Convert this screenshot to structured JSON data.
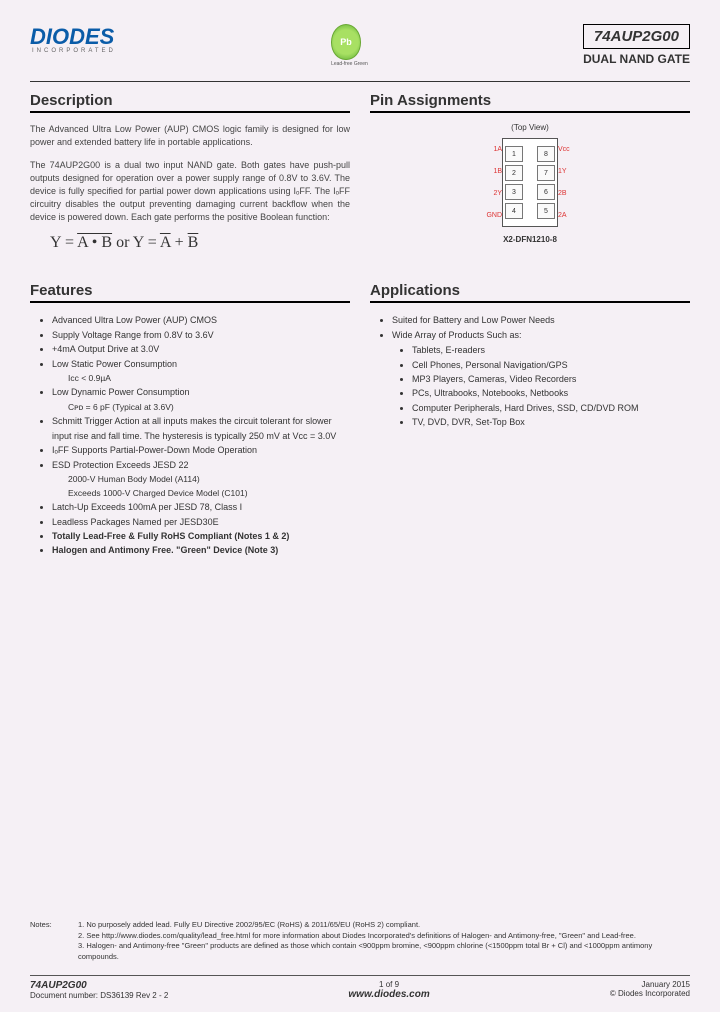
{
  "header": {
    "logo_text": "DIODES",
    "logo_sub": "INCORPORATED",
    "badge_text": "Pb",
    "badge_sub": "Lead-free Green",
    "part_number": "74AUP2G00",
    "part_subtitle": "DUAL NAND GATE"
  },
  "description": {
    "heading": "Description",
    "para1": "The Advanced Ultra Low Power (AUP) CMOS logic family is designed for low power and extended battery life in portable applications.",
    "para2": "The 74AUP2G00 is a dual two input NAND gate. Both gates have push-pull outputs designed for operation over a power supply range of 0.8V to 3.6V. The device is fully specified for partial power down applications using IₒFF. The IₒFF circuitry disables the output preventing damaging current backflow when the device is powered down. Each gate performs the positive Boolean function:",
    "formula_a": "Y = ",
    "formula_b": "A • B",
    "formula_or": " or ",
    "formula_c": "Y = ",
    "formula_d": "A",
    "formula_plus": " + ",
    "formula_e": "B"
  },
  "pins": {
    "heading": "Pin Assignments",
    "top_view": "(Top View)",
    "package": "X2-DFN1210-8",
    "rows": [
      {
        "l": "1A",
        "ln": "1",
        "rn": "8",
        "r": "Vcc"
      },
      {
        "l": "1B",
        "ln": "2",
        "rn": "7",
        "r": "1Y"
      },
      {
        "l": "2Y",
        "ln": "3",
        "rn": "6",
        "r": "2B"
      },
      {
        "l": "GND",
        "ln": "4",
        "rn": "5",
        "r": "2A"
      }
    ]
  },
  "features": {
    "heading": "Features",
    "items": [
      {
        "t": "Advanced Ultra Low Power (AUP) CMOS"
      },
      {
        "t": "Supply Voltage Range from 0.8V to 3.6V"
      },
      {
        "t": "+4mA Output Drive at 3.0V"
      },
      {
        "t": "Low Static Power Consumption",
        "sub": [
          "Icc < 0.9µA"
        ]
      },
      {
        "t": "Low Dynamic Power Consumption",
        "sub": [
          "Cᴘᴅ = 6 pF (Typical at 3.6V)"
        ]
      },
      {
        "t": "Schmitt Trigger Action at all inputs makes the circuit tolerant for slower input rise and fall time. The hysteresis is typically 250 mV at Vcc = 3.0V"
      },
      {
        "t": "IₒFF Supports Partial-Power-Down Mode Operation"
      },
      {
        "t": "ESD Protection Exceeds JESD 22",
        "sub": [
          "2000-V Human Body Model (A114)",
          "Exceeds 1000-V Charged Device Model (C101)"
        ]
      },
      {
        "t": "Latch-Up Exceeds 100mA per JESD 78, Class I"
      },
      {
        "t": "Leadless Packages Named per JESD30E"
      },
      {
        "t": "Totally Lead-Free & Fully RoHS Compliant (Notes 1 & 2)",
        "bold": true
      },
      {
        "t": "Halogen and Antimony Free. \"Green\" Device (Note 3)",
        "bold": true
      }
    ]
  },
  "apps": {
    "heading": "Applications",
    "items": [
      {
        "t": "Suited for Battery and Low Power Needs"
      },
      {
        "t": "Wide Array of Products Such as:",
        "sub": [
          "Tablets, E-readers",
          "Cell Phones, Personal Navigation/GPS",
          "MP3 Players, Cameras, Video Recorders",
          "PCs, Ultrabooks, Notebooks, Netbooks",
          "Computer Peripherals, Hard Drives, SSD, CD/DVD ROM",
          "TV, DVD, DVR, Set-Top Box"
        ]
      }
    ]
  },
  "notes": {
    "label": "Notes:",
    "n1": "1. No purposely added lead. Fully EU Directive 2002/95/EC (RoHS) & 2011/65/EU (RoHS 2) compliant.",
    "n2": "2. See http://www.diodes.com/quality/lead_free.html for more information about Diodes Incorporated's definitions of Halogen- and Antimony-free, \"Green\" and Lead-free.",
    "n3": "3. Halogen- and Antimony-free \"Green\" products are defined as those which contain <900ppm bromine, <900ppm chlorine (<1500ppm total Br + Cl) and <1000ppm antimony compounds."
  },
  "footer": {
    "part": "74AUP2G00",
    "doc": "Document number: DS36139 Rev 2 - 2",
    "page": "1 of 9",
    "url": "www.diodes.com",
    "date": "January 2015",
    "copy": "© Diodes Incorporated"
  }
}
